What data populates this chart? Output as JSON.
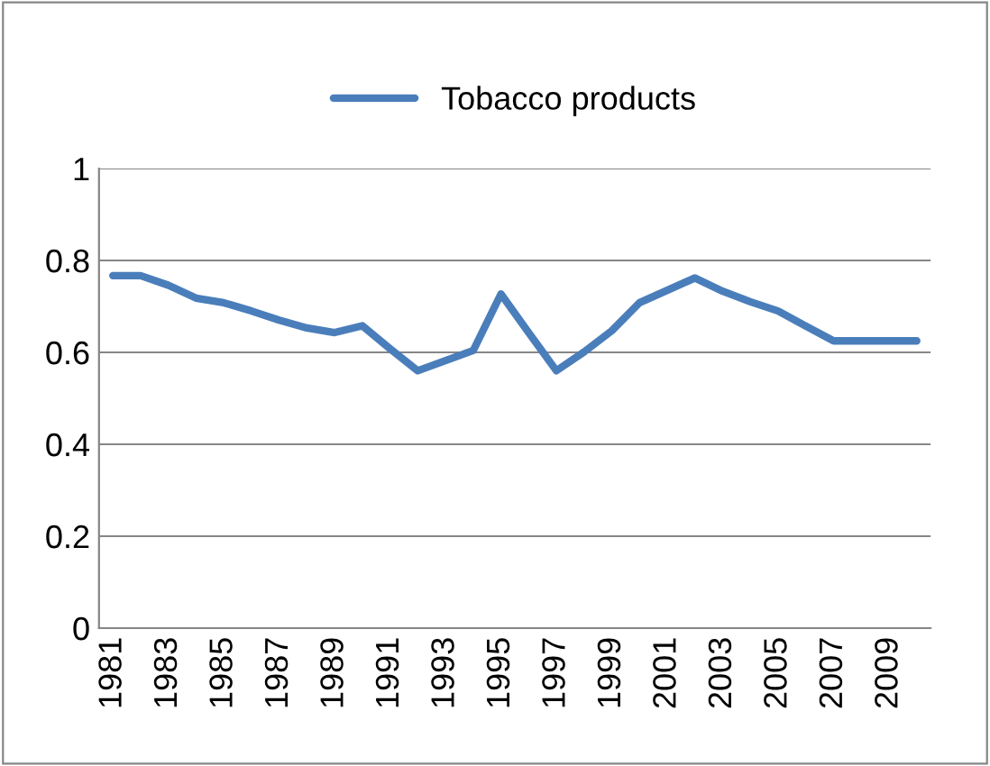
{
  "chart_data": {
    "type": "line",
    "categories": [
      "1981",
      null,
      "1983",
      null,
      "1985",
      null,
      "1987",
      null,
      "1989",
      null,
      "1991",
      null,
      "1993",
      null,
      "1995",
      null,
      "1997",
      null,
      "1999",
      null,
      "2001",
      null,
      "2003",
      null,
      "2005",
      null,
      "2007",
      null,
      "2009",
      null
    ],
    "series": [
      {
        "name": "Tobacco products",
        "color": "#4a7ebb",
        "values": [
          0.767,
          0.767,
          0.746,
          0.718,
          0.708,
          0.69,
          0.67,
          0.653,
          0.643,
          0.658,
          0.608,
          0.56,
          0.582,
          0.604,
          0.727,
          0.643,
          0.56,
          0.601,
          0.647,
          0.708,
          0.735,
          0.762,
          0.733,
          0.71,
          0.69,
          0.657,
          0.625,
          0.625,
          0.625,
          0.625
        ]
      }
    ],
    "ylim": [
      0,
      1
    ],
    "yticks": [
      0,
      0.2,
      0.4,
      0.6,
      0.8,
      1
    ],
    "grid": "y",
    "legend": "top",
    "marker": "none",
    "line_style": "solid"
  }
}
